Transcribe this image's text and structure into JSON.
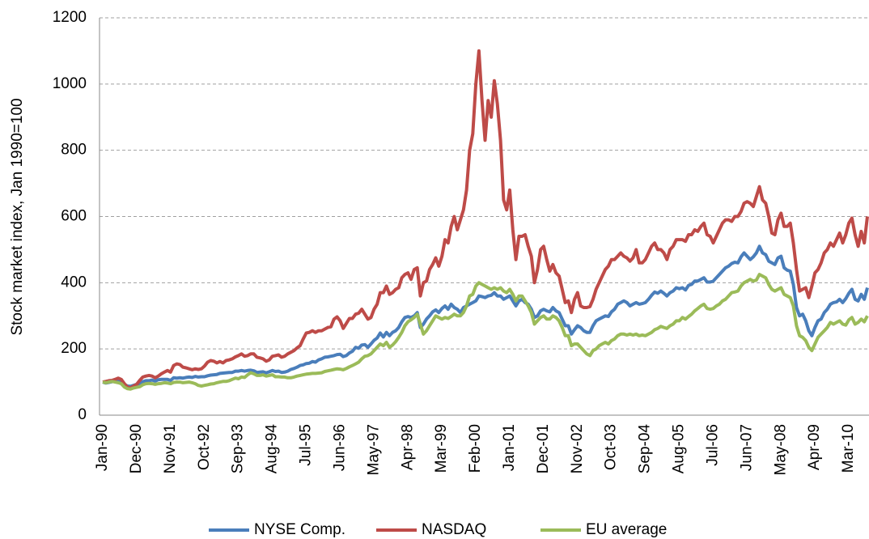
{
  "chart_data": {
    "type": "line",
    "y_label": "Stock market index, Jan 1990=100",
    "ylim": [
      0,
      1200
    ],
    "yticks": [
      0,
      200,
      400,
      600,
      800,
      1000,
      1200
    ],
    "grid": true,
    "legend": "bottom",
    "categories": [
      "Jan-90",
      null,
      null,
      null,
      null,
      null,
      null,
      null,
      null,
      null,
      null,
      "Dec-90",
      null,
      null,
      null,
      null,
      null,
      null,
      null,
      null,
      null,
      null,
      "Nov-91",
      null,
      null,
      null,
      null,
      null,
      null,
      null,
      null,
      null,
      null,
      "Oct-92",
      null,
      null,
      null,
      null,
      null,
      null,
      null,
      null,
      null,
      null,
      "Sep-93",
      null,
      null,
      null,
      null,
      null,
      null,
      null,
      null,
      null,
      null,
      "Aug-94",
      null,
      null,
      null,
      null,
      null,
      null,
      null,
      null,
      null,
      null,
      "Jul-95",
      null,
      null,
      null,
      null,
      null,
      null,
      null,
      null,
      null,
      null,
      "Jun-96",
      null,
      null,
      null,
      null,
      null,
      null,
      null,
      null,
      null,
      null,
      "May-97",
      null,
      null,
      null,
      null,
      null,
      null,
      null,
      null,
      null,
      null,
      "Apr-98",
      null,
      null,
      null,
      null,
      null,
      null,
      null,
      null,
      null,
      null,
      "Mar-99",
      null,
      null,
      null,
      null,
      null,
      null,
      null,
      null,
      null,
      null,
      "Feb-00",
      null,
      null,
      null,
      null,
      null,
      null,
      null,
      null,
      null,
      null,
      "Jan-01",
      null,
      null,
      null,
      null,
      null,
      null,
      null,
      null,
      null,
      null,
      "Dec-01",
      null,
      null,
      null,
      null,
      null,
      null,
      null,
      null,
      null,
      null,
      "Nov-02",
      null,
      null,
      null,
      null,
      null,
      null,
      null,
      null,
      null,
      null,
      "Oct-03",
      null,
      null,
      null,
      null,
      null,
      null,
      null,
      null,
      null,
      null,
      "Sep-04",
      null,
      null,
      null,
      null,
      null,
      null,
      null,
      null,
      null,
      null,
      "Aug-05",
      null,
      null,
      null,
      null,
      null,
      null,
      null,
      null,
      null,
      null,
      "Jul-06",
      null,
      null,
      null,
      null,
      null,
      null,
      null,
      null,
      null,
      null,
      "Jun-07",
      null,
      null,
      null,
      null,
      null,
      null,
      null,
      null,
      null,
      null,
      "May-08",
      null,
      null,
      null,
      null,
      null,
      null,
      null,
      null,
      null,
      null,
      "Apr-09",
      null,
      null,
      null,
      null,
      null,
      null,
      null,
      null,
      null,
      null,
      "Mar-10",
      null,
      null,
      null,
      null,
      null,
      null
    ],
    "series": [
      {
        "name": "NYSE Comp.",
        "color": "#4a7ebb",
        "values": [
          100,
          97,
          99,
          101,
          104,
          102,
          100,
          93,
          88,
          87,
          90,
          93,
          96,
          101,
          104,
          104,
          106,
          103,
          107,
          108,
          108,
          108,
          105,
          113,
          112,
          113,
          112,
          114,
          115,
          114,
          117,
          115,
          116,
          116,
          119,
          121,
          122,
          123,
          126,
          127,
          128,
          129,
          129,
          133,
          133,
          135,
          133,
          135,
          136,
          134,
          129,
          130,
          131,
          128,
          131,
          135,
          132,
          133,
          129,
          130,
          133,
          138,
          141,
          145,
          150,
          152,
          156,
          157,
          162,
          160,
          167,
          170,
          175,
          176,
          178,
          180,
          183,
          184,
          177,
          180,
          188,
          193,
          205,
          202,
          212,
          213,
          205,
          215,
          226,
          233,
          248,
          236,
          250,
          240,
          250,
          255,
          265,
          282,
          295,
          298,
          295,
          300,
          310,
          265,
          275,
          290,
          300,
          312,
          318,
          310,
          322,
          330,
          320,
          335,
          325,
          320,
          310,
          325,
          330,
          335,
          340,
          345,
          360,
          358,
          355,
          360,
          362,
          370,
          360,
          360,
          350,
          355,
          360,
          345,
          330,
          345,
          350,
          340,
          335,
          320,
          295,
          300,
          315,
          320,
          315,
          312,
          325,
          315,
          310,
          290,
          270,
          270,
          245,
          258,
          270,
          265,
          255,
          250,
          250,
          270,
          285,
          290,
          295,
          300,
          298,
          312,
          320,
          335,
          340,
          345,
          340,
          330,
          335,
          340,
          335,
          337,
          340,
          350,
          362,
          372,
          368,
          375,
          368,
          360,
          370,
          375,
          385,
          382,
          385,
          378,
          392,
          395,
          405,
          405,
          410,
          415,
          402,
          402,
          405,
          415,
          425,
          435,
          445,
          450,
          458,
          462,
          460,
          478,
          490,
          480,
          470,
          478,
          490,
          510,
          490,
          485,
          465,
          460,
          455,
          475,
          480,
          445,
          438,
          435,
          395,
          325,
          300,
          305,
          285,
          255,
          240,
          265,
          285,
          290,
          310,
          320,
          335,
          340,
          342,
          350,
          340,
          352,
          368,
          380,
          350,
          345,
          365,
          350,
          385
        ]
      },
      {
        "name": "NASDAQ",
        "color": "#be4b48",
        "values": [
          100,
          102,
          104,
          105,
          108,
          112,
          108,
          95,
          85,
          82,
          88,
          93,
          105,
          115,
          118,
          120,
          118,
          113,
          118,
          125,
          130,
          135,
          130,
          150,
          155,
          153,
          145,
          143,
          140,
          137,
          140,
          138,
          140,
          148,
          160,
          165,
          163,
          158,
          162,
          158,
          165,
          167,
          170,
          176,
          180,
          185,
          178,
          180,
          185,
          185,
          175,
          173,
          170,
          163,
          167,
          178,
          180,
          182,
          175,
          178,
          185,
          190,
          195,
          203,
          210,
          230,
          248,
          250,
          255,
          250,
          255,
          255,
          260,
          265,
          267,
          290,
          297,
          285,
          262,
          277,
          292,
          292,
          305,
          308,
          320,
          305,
          290,
          295,
          320,
          335,
          370,
          370,
          390,
          365,
          370,
          380,
          385,
          415,
          425,
          430,
          410,
          440,
          445,
          360,
          400,
          405,
          440,
          455,
          475,
          450,
          480,
          530,
          520,
          570,
          600,
          560,
          590,
          620,
          680,
          800,
          850,
          1000,
          1100,
          950,
          830,
          950,
          900,
          1010,
          940,
          830,
          650,
          620,
          680,
          560,
          470,
          540,
          540,
          545,
          510,
          480,
          400,
          440,
          500,
          510,
          470,
          435,
          455,
          430,
          420,
          380,
          340,
          345,
          310,
          350,
          370,
          330,
          325,
          325,
          328,
          350,
          380,
          400,
          420,
          440,
          450,
          470,
          470,
          480,
          490,
          480,
          475,
          465,
          475,
          500,
          460,
          460,
          470,
          490,
          510,
          520,
          500,
          500,
          490,
          470,
          500,
          510,
          530,
          530,
          530,
          525,
          545,
          545,
          560,
          555,
          570,
          580,
          545,
          540,
          520,
          540,
          560,
          580,
          590,
          590,
          585,
          600,
          600,
          615,
          640,
          645,
          640,
          630,
          660,
          690,
          650,
          640,
          600,
          550,
          545,
          590,
          610,
          570,
          570,
          580,
          520,
          440,
          375,
          380,
          385,
          355,
          390,
          430,
          440,
          460,
          490,
          500,
          520,
          510,
          530,
          550,
          520,
          545,
          580,
          595,
          545,
          510,
          555,
          520,
          600
        ]
      },
      {
        "name": "EU average",
        "color": "#9bbb59",
        "values": [
          100,
          98,
          100,
          102,
          100,
          98,
          95,
          85,
          80,
          79,
          82,
          84,
          86,
          92,
          95,
          96,
          95,
          93,
          95,
          96,
          98,
          97,
          95,
          99,
          100,
          100,
          98,
          99,
          100,
          98,
          95,
          90,
          88,
          90,
          92,
          94,
          95,
          98,
          100,
          102,
          102,
          104,
          108,
          112,
          110,
          115,
          114,
          122,
          128,
          125,
          120,
          120,
          122,
          118,
          120,
          122,
          116,
          116,
          115,
          115,
          113,
          113,
          115,
          118,
          120,
          122,
          124,
          125,
          126,
          126,
          127,
          128,
          132,
          134,
          136,
          138,
          140,
          139,
          137,
          141,
          146,
          150,
          155,
          160,
          170,
          178,
          180,
          185,
          195,
          205,
          215,
          210,
          220,
          205,
          212,
          222,
          235,
          250,
          270,
          282,
          288,
          295,
          305,
          275,
          245,
          255,
          270,
          285,
          300,
          295,
          290,
          295,
          292,
          298,
          305,
          300,
          300,
          310,
          330,
          360,
          365,
          390,
          400,
          395,
          390,
          385,
          380,
          385,
          380,
          385,
          375,
          370,
          380,
          365,
          345,
          360,
          360,
          345,
          330,
          310,
          275,
          285,
          295,
          300,
          290,
          290,
          300,
          295,
          285,
          265,
          240,
          240,
          210,
          215,
          215,
          205,
          195,
          185,
          180,
          195,
          200,
          210,
          215,
          220,
          215,
          225,
          230,
          240,
          245,
          245,
          242,
          245,
          242,
          245,
          240,
          242,
          240,
          245,
          250,
          258,
          262,
          268,
          265,
          262,
          270,
          275,
          285,
          285,
          295,
          290,
          298,
          305,
          315,
          322,
          330,
          335,
          322,
          320,
          322,
          330,
          335,
          345,
          350,
          360,
          370,
          372,
          375,
          390,
          400,
          405,
          410,
          405,
          408,
          425,
          420,
          415,
          395,
          380,
          375,
          380,
          385,
          365,
          360,
          355,
          330,
          270,
          240,
          235,
          225,
          205,
          195,
          215,
          235,
          245,
          255,
          265,
          280,
          275,
          280,
          285,
          275,
          272,
          288,
          295,
          275,
          280,
          290,
          282,
          300
        ]
      }
    ]
  }
}
